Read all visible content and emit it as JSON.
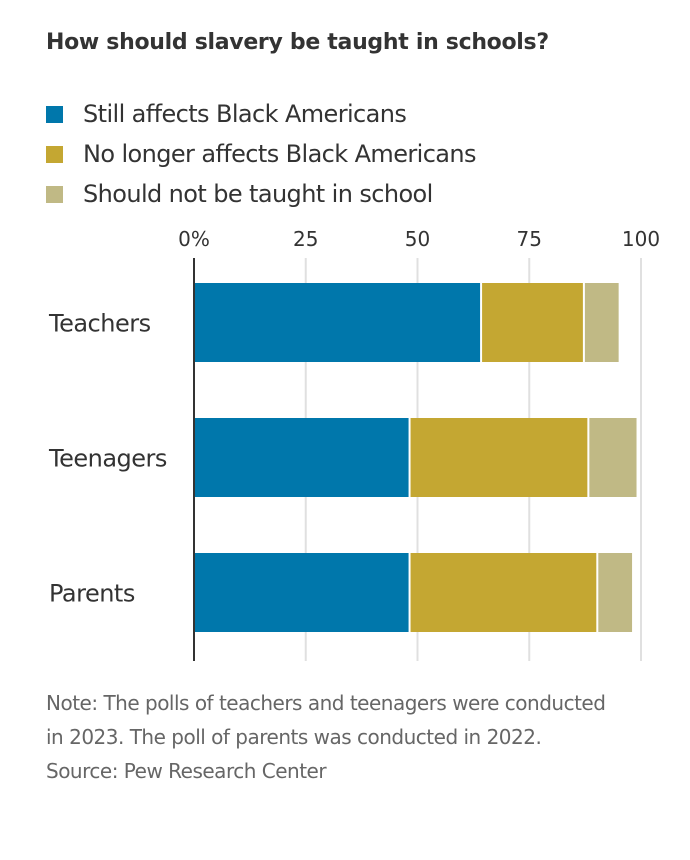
{
  "chart_data": {
    "type": "bar",
    "orientation": "horizontal",
    "stacked": true,
    "title": "How should slavery be taught in schools?",
    "xlabel": "",
    "ylabel": "",
    "xlim": [
      0,
      100
    ],
    "x_ticks": [
      0,
      25,
      50,
      75,
      100
    ],
    "x_tick_labels": [
      "0%",
      "25",
      "50",
      "75",
      "100"
    ],
    "grid": true,
    "legend_position": "top-left",
    "categories": [
      "Teachers",
      "Teenagers",
      "Parents"
    ],
    "series": [
      {
        "name": "Still affects Black Americans",
        "color": "#0077ab",
        "values": [
          64,
          48,
          48
        ]
      },
      {
        "name": "No longer affects Black Americans",
        "color": "#c4a732",
        "values": [
          23,
          40,
          42
        ]
      },
      {
        "name": "Should not be taught in school",
        "color": "#c0b985",
        "values": [
          8,
          11,
          8
        ]
      }
    ]
  },
  "footer": {
    "note": "Note: The polls of teachers and teenagers were conducted in 2023. The poll of parents was conducted in 2022.",
    "source": "Source: Pew Research Center"
  }
}
